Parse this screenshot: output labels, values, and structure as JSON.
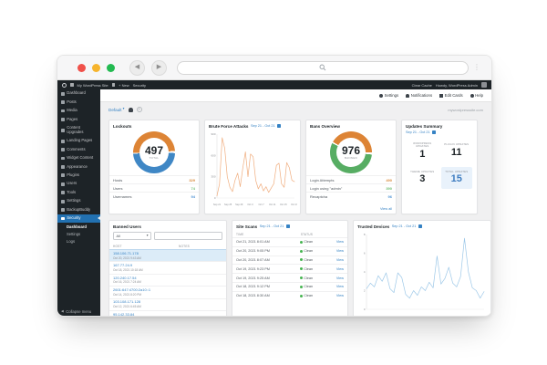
{
  "browser": {
    "url_value": "",
    "traffic_lights": [
      "#f0514a",
      "#f6b42d",
      "#23ba51"
    ]
  },
  "admin_bar": {
    "site_name": "My WordPress Site",
    "new_label": "+ New",
    "current_page": "Security",
    "clear_cache": "Clear Cache",
    "greeting": "Howdy, WordPress Admin"
  },
  "sidebar": {
    "items": [
      {
        "label": "Dashboard",
        "icon": "dashboard-icon"
      },
      {
        "label": "Posts",
        "icon": "pin-icon"
      },
      {
        "label": "Media",
        "icon": "media-icon"
      },
      {
        "label": "Pages",
        "icon": "pages-icon"
      },
      {
        "label": "Content Upgrades",
        "icon": "content-upgrades-icon"
      },
      {
        "label": "Landing Pages",
        "icon": "landing-pages-icon"
      },
      {
        "label": "Comments",
        "icon": "comments-icon"
      },
      {
        "label": "Widget Content",
        "icon": "widget-icon"
      },
      {
        "label": "Appearance",
        "icon": "appearance-icon"
      },
      {
        "label": "Plugins",
        "icon": "plugins-icon"
      },
      {
        "label": "Users",
        "icon": "users-icon"
      },
      {
        "label": "Tools",
        "icon": "tools-icon"
      },
      {
        "label": "Settings",
        "icon": "settings-icon"
      },
      {
        "label": "BackupBuddy",
        "icon": "backup-icon"
      },
      {
        "label": "Security",
        "icon": "shield-icon",
        "active": true
      }
    ],
    "submenu": [
      {
        "label": "Dashboard",
        "current": true
      },
      {
        "label": "Settings"
      },
      {
        "label": "Logs"
      }
    ],
    "collapse_label": "Collapse menu"
  },
  "header": {
    "actions": [
      {
        "label": "Settings",
        "icon": "gear-icon"
      },
      {
        "label": "Notifications",
        "icon": "bell-icon"
      },
      {
        "label": "Edit Cards",
        "icon": "grid-icon"
      },
      {
        "label": "Help",
        "icon": "help-icon"
      }
    ]
  },
  "toolbar": {
    "dashboard_select": "Default",
    "site_domain": "mywordpresssite.com"
  },
  "cards": {
    "lockouts": {
      "title": "Lockouts",
      "total": "497",
      "total_label": "TOTAL",
      "donut_colors": {
        "top": "#dd8435",
        "bottom": "#3f87c5"
      },
      "legend": [
        {
          "label": "Hosts",
          "value": "329",
          "color": "#d98c3f"
        },
        {
          "label": "Users",
          "value": "74",
          "color": "#6fbf73"
        },
        {
          "label": "Usernames",
          "value": "94",
          "color": "#4f94d4"
        }
      ]
    },
    "brute_force": {
      "title": "Brute Force Attacks",
      "date_range": "Sep 21 - Oct 21",
      "chart_data": {
        "type": "line",
        "color": "#f0ad7e",
        "title": "Brute Force Attacks",
        "x_labels": [
          "Sep 21",
          "Sep 25",
          "Sep 29",
          "Oct 3",
          "Oct 7",
          "Oct 11",
          "Oct 15",
          "Oct 19"
        ],
        "values": [
          30,
          200,
          850,
          700,
          300,
          150,
          90,
          250,
          350,
          160,
          420,
          650,
          300,
          620,
          580,
          250,
          130,
          200,
          100,
          160,
          80,
          140,
          200,
          460,
          490,
          200,
          150,
          500,
          430,
          250,
          230
        ],
        "ylim": [
          0,
          900
        ],
        "y_ticks": [
          900,
          600,
          300,
          0
        ],
        "grid": false,
        "legend_position": "none"
      }
    },
    "bans": {
      "title": "Bans Overview",
      "total": "976",
      "total_label": "BANNED",
      "donut_colors": {
        "top": "#dd8435",
        "bottom": "#57ad63"
      },
      "legend": [
        {
          "label": "Login Attempts",
          "value": "490",
          "color": "#d98c3f"
        },
        {
          "label": "Login using \"admin\"",
          "value": "390",
          "color": "#6fbf73"
        },
        {
          "label": "Recaptcha",
          "value": "96",
          "color": "#4f94d4"
        }
      ],
      "link": "View all"
    },
    "updates": {
      "title": "Updates Summary",
      "date_range": "Sep 21 - Oct 21",
      "stats": [
        {
          "label": "WORDPRESS UPDATES",
          "value": "1"
        },
        {
          "label": "PLUGIN UPDATES",
          "value": "11"
        },
        {
          "label": "THEME UPDATES",
          "value": "3"
        },
        {
          "label": "TOTAL UPDATES",
          "value": "15",
          "highlight": true
        }
      ]
    },
    "banned_users": {
      "title": "Banned Users",
      "filter_value": "All",
      "search_placeholder": "",
      "headers": [
        "HOST",
        "NOTES"
      ],
      "rows": [
        {
          "host": "158.106.71.178",
          "date": "Oct 20, 2021 9:43 AM",
          "selected": true
        },
        {
          "host": "167.77.24.9",
          "date": "Oct 18, 2021 10:18 AM"
        },
        {
          "host": "120.240.17.54",
          "date": "Oct 16, 2021 7:24 AM"
        },
        {
          "host": "2601:647:4700:2a10::1",
          "date": "Oct 14, 2021 8:20 PM"
        },
        {
          "host": "103.108.171.128",
          "date": "Oct 12, 2021 6:45 AM"
        },
        {
          "host": "95.142.33.84",
          "date": "Oct 11, 2021 4:02 PM"
        }
      ]
    },
    "site_scans": {
      "title": "Site Scans",
      "date_range": "Sep 21 - Oct 21",
      "headers": [
        "TIME",
        "STATUS"
      ],
      "action_label": "View",
      "rows": [
        {
          "time": "Oct 21, 2021 8:01 AM",
          "status": "Clean"
        },
        {
          "time": "Oct 20, 2021 9:05 PM",
          "status": "Clean"
        },
        {
          "time": "Oct 20, 2021 8:07 AM",
          "status": "Clean"
        },
        {
          "time": "Oct 19, 2021 9:23 PM",
          "status": "Clean"
        },
        {
          "time": "Oct 19, 2021 9:25 AM",
          "status": "Clean"
        },
        {
          "time": "Oct 18, 2021 9:12 PM",
          "status": "Clean"
        },
        {
          "time": "Oct 18, 2021 8:30 AM",
          "status": "Clean"
        }
      ]
    },
    "trusted_devices": {
      "title": "Trusted Devices",
      "date_range": "Sep 21 - Oct 21",
      "chart_data": {
        "type": "line",
        "color": "#9dc8e8",
        "title": "Trusted Devices",
        "values": [
          2.2,
          2.8,
          2.4,
          3.6,
          3.0,
          3.9,
          2.2,
          1.8,
          3.9,
          3.4,
          1.6,
          1.2,
          2.0,
          1.5,
          2.4,
          2.0,
          2.9,
          2.3,
          5.7,
          2.7,
          3.3,
          4.5,
          2.8,
          2.4,
          3.5,
          7.6,
          4.0,
          2.3,
          2.0,
          1.2,
          1.9
        ],
        "ylim": [
          0,
          8
        ],
        "y_ticks": [
          8,
          6,
          4,
          2,
          0
        ],
        "grid": false,
        "legend_position": "none"
      }
    }
  }
}
